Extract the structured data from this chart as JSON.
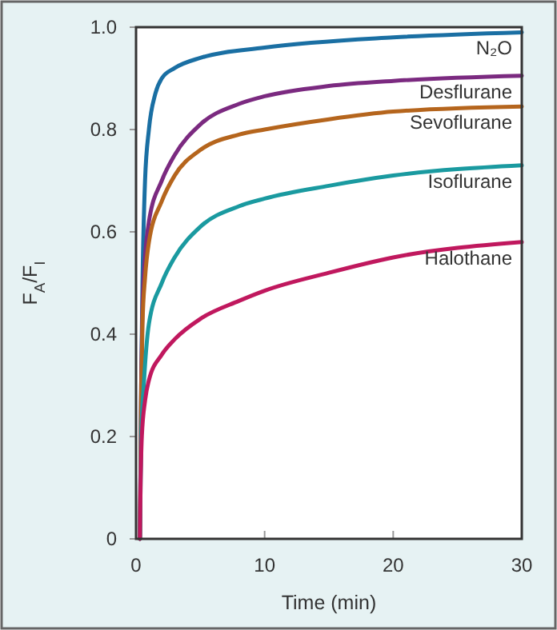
{
  "chart_data": {
    "type": "line",
    "xlabel": "Time (min)",
    "ylabel": "F$_{A}$/F$_{I}$",
    "xlim": [
      0,
      30
    ],
    "ylim": [
      0,
      1
    ],
    "xticks": [
      0,
      10,
      20,
      30
    ],
    "yticks": [
      0,
      0.2,
      0.4,
      0.6,
      0.8,
      {
        "value": 1,
        "label": "1.0"
      }
    ],
    "line_style": "solid",
    "marker": "none",
    "series": [
      {
        "name": "N₂O",
        "color": "#1a6fa3",
        "x": [
          0.3,
          0.4,
          0.5,
          0.7,
          1,
          1.5,
          2,
          3,
          5,
          10,
          20,
          30
        ],
        "values": [
          0,
          0.3,
          0.5,
          0.7,
          0.8,
          0.87,
          0.9,
          0.92,
          0.94,
          0.96,
          0.98,
          0.99
        ]
      },
      {
        "name": "Desflurane",
        "color": "#7b2a80",
        "x": [
          0.3,
          0.4,
          0.5,
          0.7,
          1,
          2,
          3,
          5,
          8,
          10,
          15,
          20,
          30
        ],
        "values": [
          0,
          0.3,
          0.45,
          0.55,
          0.62,
          0.7,
          0.75,
          0.81,
          0.85,
          0.865,
          0.885,
          0.895,
          0.905
        ]
      },
      {
        "name": "Sevoflurane",
        "color": "#b5651d",
        "x": [
          0.3,
          0.4,
          0.5,
          0.7,
          1,
          2,
          3,
          5,
          8,
          10,
          15,
          20,
          30
        ],
        "values": [
          0,
          0.28,
          0.42,
          0.51,
          0.58,
          0.66,
          0.71,
          0.76,
          0.79,
          0.8,
          0.82,
          0.835,
          0.845
        ]
      },
      {
        "name": "Isoflurane",
        "color": "#1a9aa0",
        "x": [
          0.3,
          0.4,
          0.6,
          1,
          2,
          3,
          5,
          8,
          10,
          15,
          20,
          30
        ],
        "values": [
          0,
          0.2,
          0.3,
          0.42,
          0.5,
          0.55,
          0.61,
          0.65,
          0.665,
          0.69,
          0.71,
          0.73
        ]
      },
      {
        "name": "Halothane",
        "color": "#c0185e",
        "x": [
          0.3,
          0.35,
          0.45,
          0.7,
          1,
          2,
          3,
          5,
          8,
          10,
          15,
          20,
          30
        ],
        "values": [
          0,
          0.1,
          0.2,
          0.27,
          0.31,
          0.36,
          0.39,
          0.43,
          0.465,
          0.485,
          0.52,
          0.55,
          0.58
        ]
      }
    ]
  }
}
